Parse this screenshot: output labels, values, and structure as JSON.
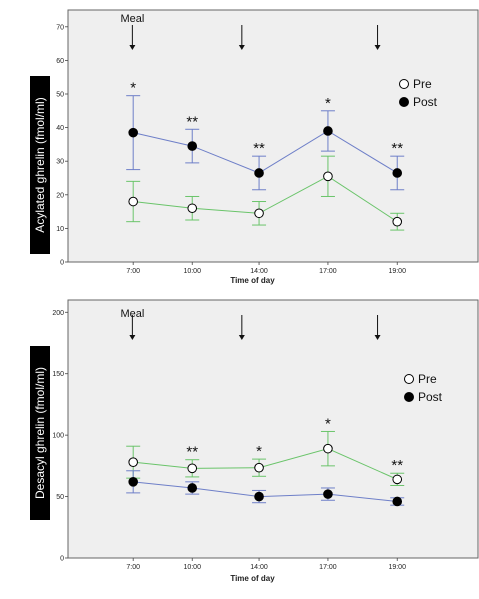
{
  "chart_data": [
    {
      "type": "line",
      "ylabel": "Acylated ghrelin (fmol/ml)",
      "xlabel": "Time of day",
      "categories": [
        "7:00",
        "10:00",
        "14:00",
        "17:00",
        "19:00"
      ],
      "ylim": [
        0,
        75
      ],
      "yticks": [
        "0",
        "10",
        "20",
        "30",
        "40",
        "50",
        "60",
        "70"
      ],
      "grid": false,
      "legend_position": "top-right",
      "meal_label": "Meal",
      "meal_markers_at": [
        7.5,
        13.3,
        18.6
      ],
      "series": [
        {
          "name": "Pre",
          "marker": "open-circle",
          "line_color": "#6ac46a",
          "values": [
            18,
            16,
            14.5,
            25.5,
            12
          ],
          "sd": [
            6,
            3.5,
            3.5,
            6,
            2.5
          ]
        },
        {
          "name": "Post",
          "marker": "filled-circle",
          "line_color": "#6e7fc8",
          "values": [
            38.5,
            34.5,
            26.5,
            39,
            26.5
          ],
          "sd": [
            11,
            5,
            5,
            6,
            5
          ]
        }
      ],
      "significance": [
        "*",
        "**",
        "**",
        "*",
        "**"
      ]
    },
    {
      "type": "line",
      "ylabel": "Desacyl ghrelin (fmol/ml)",
      "xlabel": "Time of day",
      "categories": [
        "7:00",
        "10:00",
        "14:00",
        "17:00",
        "19:00"
      ],
      "ylim": [
        0,
        210
      ],
      "yticks": [
        "0",
        "50",
        "100",
        "150",
        "200"
      ],
      "grid": false,
      "legend_position": "right",
      "meal_label": "Meal",
      "meal_markers_at": [
        7.5,
        13.3,
        18.6
      ],
      "series": [
        {
          "name": "Pre",
          "marker": "open-circle",
          "line_color": "#6ac46a",
          "values": [
            78,
            73,
            73.5,
            89,
            64
          ],
          "sd": [
            13,
            7,
            7,
            14,
            5
          ]
        },
        {
          "name": "Post",
          "marker": "filled-circle",
          "line_color": "#6e7fc8",
          "values": [
            62,
            57,
            50,
            52,
            46
          ],
          "sd": [
            9,
            5,
            5,
            5,
            3
          ]
        }
      ],
      "significance": [
        "",
        "**",
        "*",
        "*",
        "**"
      ]
    }
  ]
}
